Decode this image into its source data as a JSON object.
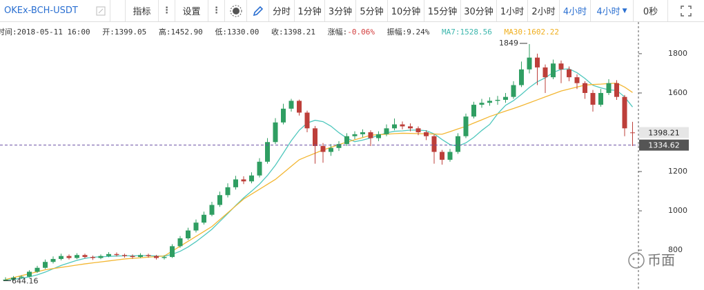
{
  "toolbar": {
    "symbol": "OKEx-BCH-USDT",
    "indicators": "指标",
    "settings": "设置",
    "periods": [
      "分时",
      "1分钟",
      "3分钟",
      "5分钟",
      "10分钟",
      "15分钟",
      "30分钟",
      "1小时",
      "2小时",
      "4小时"
    ],
    "active_period": 9,
    "dropdown": "4小时",
    "countdown": "0秒"
  },
  "info": [
    "时间:2018-05-11 16:00",
    "开:1399.05",
    "高:1452.90",
    "低:1330.00",
    "收:1398.21",
    "涨幅:",
    "-0.06%",
    "振幅:9.24%",
    "MA7:1528.56",
    "MA30:1602.22"
  ],
  "watermark": "币面",
  "chart_data": {
    "type": "candlestick",
    "ylim": [
      597,
      1933
    ],
    "yticks": [
      800,
      1000,
      1200,
      1600,
      1800
    ],
    "up_color": "#2f9e62",
    "down_color": "#bd3f3a",
    "crosshair": 1334.62,
    "open": [
      645,
      650,
      660,
      665,
      690,
      710,
      740,
      755,
      770,
      760,
      775,
      765,
      760,
      770,
      780,
      775,
      770,
      765,
      775,
      770,
      760,
      765,
      820,
      860,
      900,
      940,
      980,
      1030,
      1080,
      1120,
      1160,
      1150,
      1180,
      1250,
      1350,
      1450,
      1520,
      1560,
      1500,
      1420,
      1330,
      1300,
      1320,
      1340,
      1380,
      1390,
      1400,
      1370,
      1390,
      1420,
      1440,
      1430,
      1420,
      1400,
      1380,
      1300,
      1260,
      1300,
      1380,
      1480,
      1540,
      1550,
      1560,
      1565,
      1580,
      1640,
      1720,
      1780,
      1730,
      1680,
      1750,
      1720,
      1680,
      1650,
      1600,
      1540,
      1600,
      1650,
      1580,
      1399.05
    ],
    "high": [
      662,
      668,
      672,
      698,
      720,
      752,
      768,
      782,
      778,
      784,
      782,
      772,
      778,
      790,
      788,
      782,
      778,
      784,
      782,
      776,
      774,
      830,
      872,
      914,
      956,
      996,
      1046,
      1098,
      1140,
      1178,
      1176,
      1196,
      1268,
      1370,
      1472,
      1545,
      1570,
      1566,
      1510,
      1432,
      1345,
      1340,
      1355,
      1395,
      1405,
      1415,
      1410,
      1405,
      1440,
      1470,
      1455,
      1445,
      1430,
      1410,
      1390,
      1310,
      1315,
      1395,
      1495,
      1555,
      1570,
      1578,
      1585,
      1600,
      1660,
      1760,
      1849,
      1800,
      1745,
      1770,
      1765,
      1735,
      1695,
      1660,
      1615,
      1620,
      1670,
      1665,
      1590,
      1452.9
    ],
    "low": [
      644.16,
      646,
      654,
      660,
      684,
      704,
      732,
      748,
      752,
      754,
      758,
      750,
      754,
      764,
      768,
      762,
      756,
      760,
      762,
      752,
      752,
      760,
      812,
      852,
      890,
      930,
      972,
      1020,
      1068,
      1108,
      1136,
      1140,
      1170,
      1240,
      1340,
      1440,
      1505,
      1485,
      1400,
      1240,
      1245,
      1280,
      1305,
      1330,
      1365,
      1375,
      1330,
      1355,
      1380,
      1410,
      1415,
      1405,
      1385,
      1360,
      1240,
      1235,
      1250,
      1290,
      1370,
      1470,
      1525,
      1535,
      1540,
      1550,
      1570,
      1630,
      1700,
      1640,
      1600,
      1670,
      1650,
      1660,
      1620,
      1570,
      1505,
      1530,
      1590,
      1565,
      1380,
      1330.0
    ],
    "close": [
      650,
      660,
      665,
      690,
      710,
      740,
      755,
      770,
      760,
      775,
      765,
      760,
      770,
      780,
      775,
      770,
      765,
      775,
      770,
      760,
      765,
      820,
      860,
      900,
      940,
      980,
      1030,
      1080,
      1120,
      1160,
      1150,
      1180,
      1250,
      1350,
      1450,
      1520,
      1560,
      1500,
      1420,
      1330,
      1300,
      1320,
      1340,
      1380,
      1390,
      1400,
      1370,
      1390,
      1420,
      1440,
      1430,
      1420,
      1400,
      1380,
      1300,
      1260,
      1300,
      1380,
      1480,
      1540,
      1550,
      1560,
      1565,
      1580,
      1640,
      1720,
      1780,
      1730,
      1680,
      1750,
      1720,
      1680,
      1650,
      1600,
      1540,
      1600,
      1650,
      1580,
      1420,
      1398.21
    ],
    "ma_lines": [
      {
        "color": "#4ec7bd",
        "values": [
          648,
          652,
          656,
          664,
          674,
          688,
          705,
          722,
          735,
          748,
          758,
          764,
          766,
          768,
          770,
          771,
          771,
          772,
          772,
          770,
          769,
          779,
          794,
          816,
          843,
          874,
          906,
          946,
          986,
          1027,
          1066,
          1100,
          1136,
          1180,
          1232,
          1294,
          1357,
          1410,
          1447,
          1461,
          1454,
          1431,
          1398,
          1370,
          1352,
          1360,
          1371,
          1384,
          1397,
          1405,
          1407,
          1411,
          1411,
          1408,
          1392,
          1363,
          1337,
          1329,
          1346,
          1374,
          1409,
          1440,
          1494,
          1537,
          1561,
          1593,
          1628,
          1657,
          1677,
          1705,
          1720,
          1723,
          1703,
          1674,
          1639,
          1626,
          1616,
          1613,
          1580,
          1528.56
        ]
      },
      {
        "color": "#f3b631",
        "values": [
          650,
          660,
          670,
          680,
          690,
          700,
          706,
          712,
          718,
          724,
          730,
          735,
          740,
          745,
          750,
          755,
          758,
          761,
          764,
          767,
          770,
          795,
          820,
          845,
          870,
          895,
          920,
          955,
          990,
          1025,
          1060,
          1085,
          1110,
          1135,
          1160,
          1193,
          1227,
          1260,
          1277,
          1293,
          1310,
          1323,
          1337,
          1350,
          1362,
          1373,
          1385,
          1388,
          1390,
          1393,
          1395,
          1394,
          1393,
          1392,
          1391,
          1390,
          1403,
          1417,
          1430,
          1447,
          1463,
          1480,
          1494,
          1508,
          1521,
          1535,
          1550,
          1565,
          1580,
          1595,
          1610,
          1620,
          1630,
          1640,
          1643,
          1645,
          1648,
          1650,
          1630,
          1602.22
        ]
      }
    ]
  }
}
